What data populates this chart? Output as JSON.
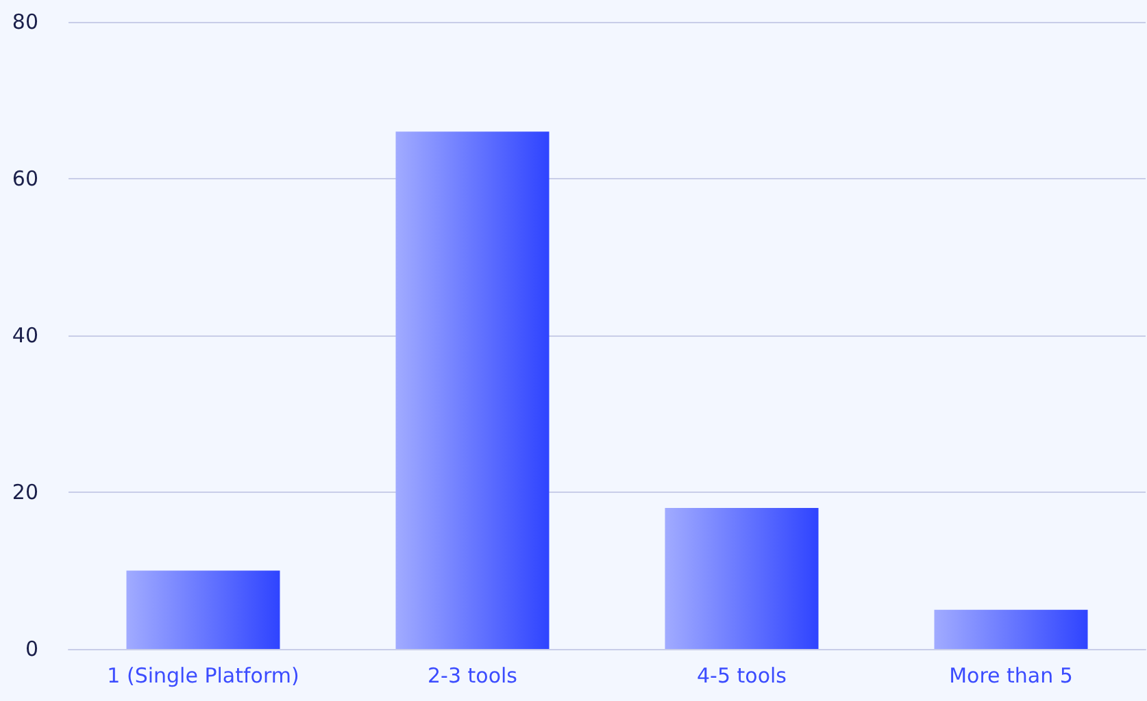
{
  "chart_data": {
    "type": "bar",
    "categories": [
      "1 (Single Platform)",
      "2-3 tools",
      "4-5 tools",
      "More than 5"
    ],
    "values": [
      10,
      66,
      18,
      5
    ],
    "color": "#2f44ff",
    "ylim": [
      0,
      80
    ],
    "yticks": [
      0,
      20,
      40,
      60,
      80
    ],
    "grid": "y"
  }
}
